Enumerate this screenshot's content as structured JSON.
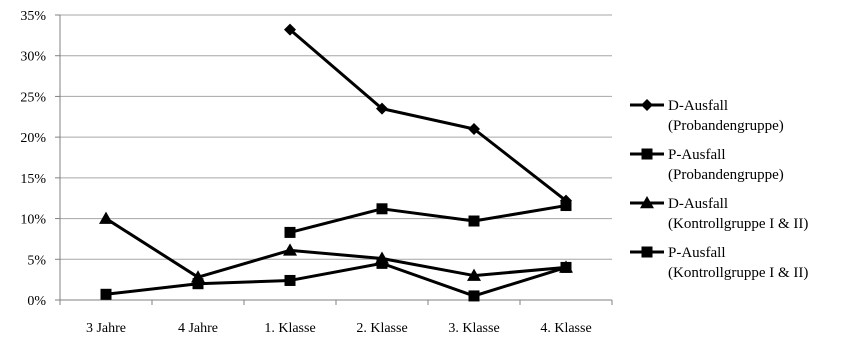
{
  "chart_data": {
    "type": "line",
    "title": "",
    "xlabel": "",
    "ylabel": "",
    "categories": [
      "3 Jahre",
      "4 Jahre",
      "1. Klasse",
      "2. Klasse",
      "3. Klasse",
      "4. Klasse"
    ],
    "ylim": [
      0,
      0.35
    ],
    "y_ticks": [
      "0%",
      "5%",
      "10%",
      "15%",
      "20%",
      "25%",
      "30%",
      "35%"
    ],
    "grid": "horizontal",
    "legend_position": "right",
    "series": [
      {
        "name": "D-Ausfall (Probandengruppe)",
        "legend_lines": [
          "D-Ausfall",
          "(Probandengruppe)"
        ],
        "marker": "diamond",
        "color": "#000000",
        "values": [
          null,
          null,
          0.332,
          0.235,
          0.21,
          0.122
        ]
      },
      {
        "name": "P-Ausfall (Probandengruppe)",
        "legend_lines": [
          "P-Ausfall",
          "(Probandengruppe)"
        ],
        "marker": "square",
        "color": "#000000",
        "values": [
          null,
          null,
          0.083,
          0.112,
          0.097,
          0.116
        ]
      },
      {
        "name": "D-Ausfall (Kontrollgruppe I & II)",
        "legend_lines": [
          "D-Ausfall",
          "(Kontrollgruppe I & II)"
        ],
        "marker": "triangle",
        "color": "#000000",
        "values": [
          0.1,
          0.028,
          0.061,
          0.051,
          0.03,
          0.04
        ]
      },
      {
        "name": "P-Ausfall (Kontrollgruppe I & II)",
        "legend_lines": [
          "P-Ausfall",
          "(Kontrollgruppe I & II)"
        ],
        "marker": "square",
        "color": "#000000",
        "values": [
          0.007,
          0.02,
          0.024,
          0.045,
          0.005,
          0.04
        ]
      }
    ]
  }
}
